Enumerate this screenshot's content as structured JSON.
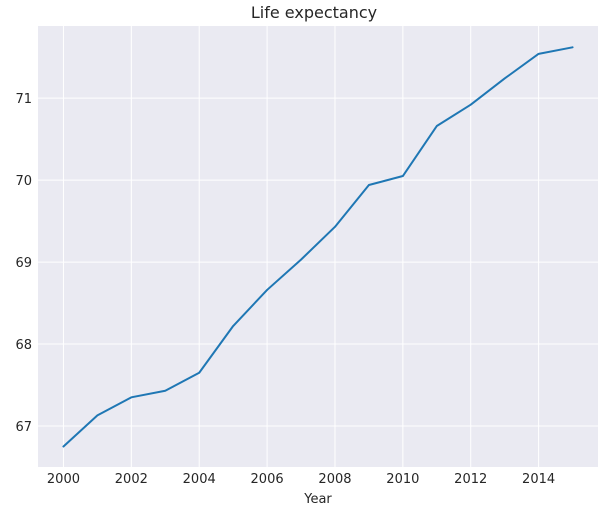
{
  "chart_data": {
    "type": "line",
    "title": "Life expectancy",
    "xlabel": "Year",
    "ylabel": "",
    "x": [
      2000,
      2001,
      2002,
      2003,
      2004,
      2005,
      2006,
      2007,
      2008,
      2009,
      2010,
      2011,
      2012,
      2013,
      2014,
      2015
    ],
    "series": [
      {
        "values": [
          66.75,
          67.13,
          67.35,
          67.43,
          67.65,
          68.22,
          68.66,
          69.03,
          69.43,
          69.94,
          70.05,
          70.66,
          70.92,
          71.24,
          71.54,
          71.62
        ]
      }
    ],
    "xticks": [
      2000,
      2002,
      2004,
      2006,
      2008,
      2010,
      2012,
      2014
    ],
    "yticks": [
      67,
      68,
      69,
      70,
      71
    ],
    "xlim": [
      1999.25,
      2015.75
    ],
    "ylim": [
      66.5,
      71.88
    ],
    "grid": true,
    "line_color": "#1f77b4",
    "background_color": "#eaeaf2",
    "grid_color": "#ffffff"
  }
}
